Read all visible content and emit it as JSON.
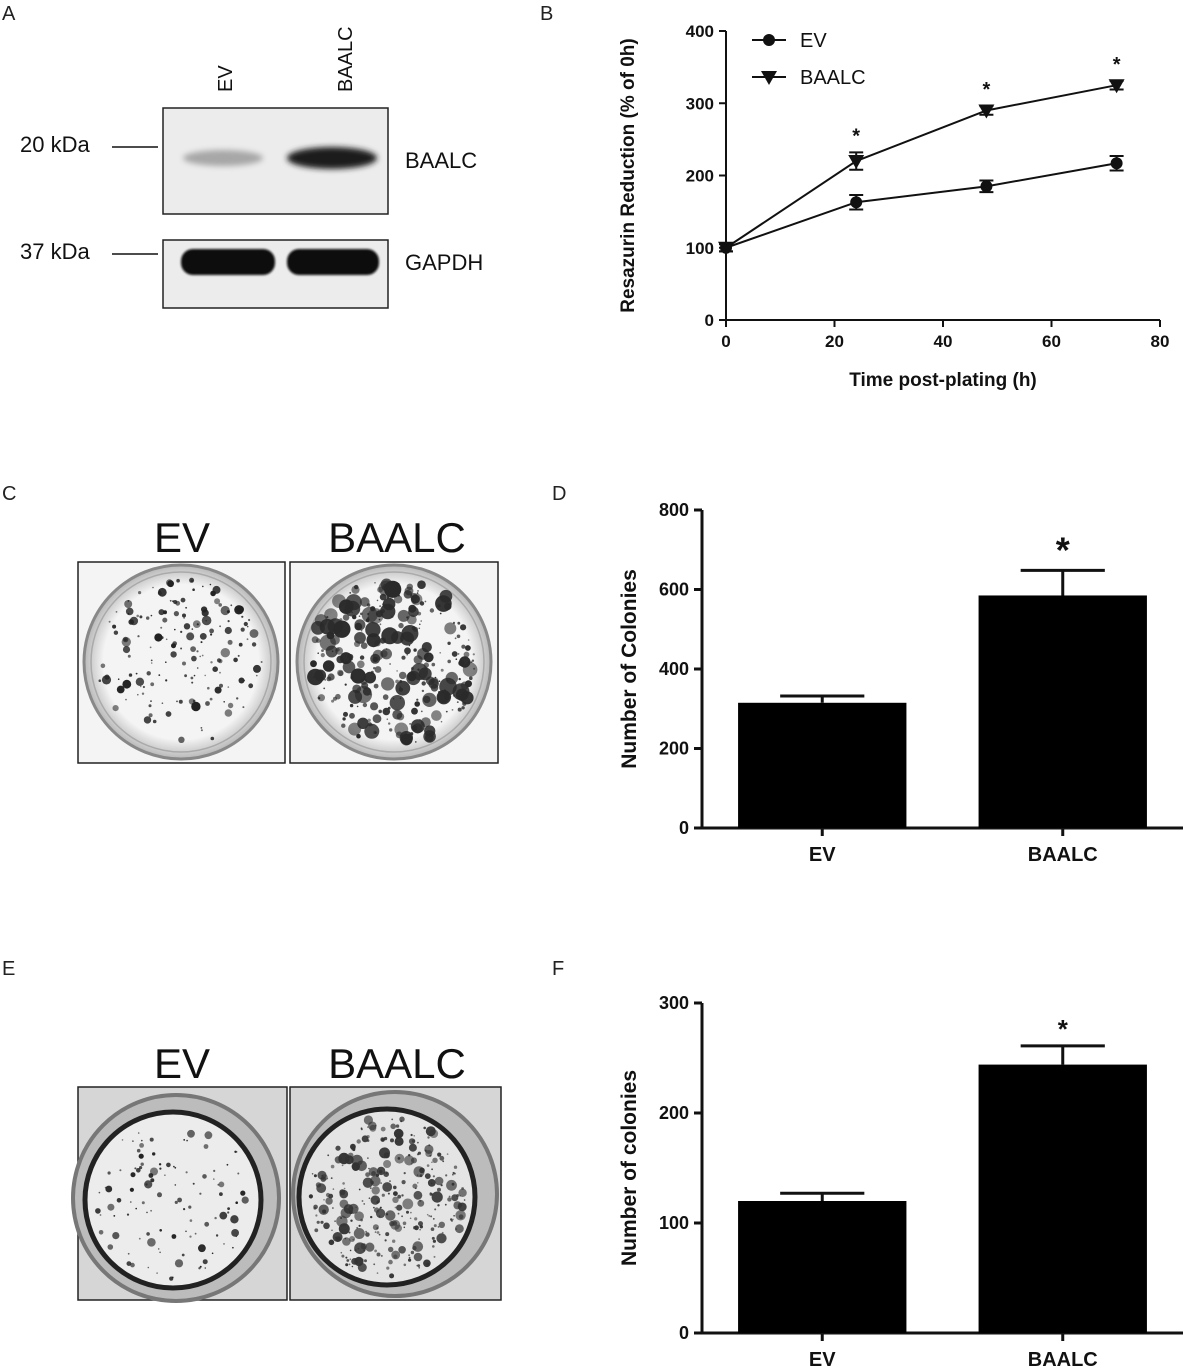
{
  "panels": {
    "a": {
      "letter": "A",
      "lanes": [
        "EV",
        "BAALC"
      ],
      "markers": [
        "20 kDa",
        "37 kDa"
      ],
      "proteins": [
        "BAALC",
        "GAPDH"
      ]
    },
    "c": {
      "letter": "C",
      "labels": [
        "EV",
        "BAALC"
      ]
    },
    "e": {
      "letter": "E",
      "labels": [
        "EV",
        "BAALC"
      ]
    }
  },
  "chart_data": [
    {
      "panel": "B",
      "type": "line",
      "xlabel": "Time post-plating (h)",
      "ylabel": "Resazurin Reduction (% of 0h)",
      "xlim": [
        0,
        80
      ],
      "ylim": [
        0,
        400
      ],
      "xticks": [
        "0",
        "20",
        "40",
        "60",
        "80"
      ],
      "yticks": [
        "0",
        "100",
        "200",
        "300",
        "400"
      ],
      "x": [
        0,
        24,
        48,
        72
      ],
      "series": [
        {
          "name": "EV",
          "marker": "circle",
          "values": [
            100,
            163,
            185,
            217
          ],
          "errors": [
            5,
            10,
            8,
            10
          ]
        },
        {
          "name": "BAALC",
          "marker": "triangle-down",
          "values": [
            100,
            220,
            290,
            325
          ],
          "errors": [
            5,
            12,
            6,
            6
          ]
        }
      ],
      "significance": [
        {
          "x": 24,
          "label": "*"
        },
        {
          "x": 48,
          "label": "*"
        },
        {
          "x": 72,
          "label": "*"
        }
      ],
      "legend_position": "top-left"
    },
    {
      "panel": "D",
      "type": "bar",
      "categories": [
        "EV",
        "BAALC"
      ],
      "values": [
        315,
        585
      ],
      "errors": [
        17,
        63
      ],
      "ylabel": "Number of Colonies",
      "ylim": [
        0,
        800
      ],
      "yticks": [
        "0",
        "200",
        "400",
        "600",
        "800"
      ],
      "significance": [
        {
          "category": "BAALC",
          "label": "*"
        }
      ]
    },
    {
      "panel": "F",
      "type": "bar",
      "categories": [
        "EV",
        "BAALC"
      ],
      "values": [
        120,
        244
      ],
      "errors": [
        7,
        17
      ],
      "ylabel": "Number of colonies",
      "ylim": [
        0,
        300
      ],
      "yticks": [
        "0",
        "100",
        "200",
        "300"
      ],
      "significance": [
        {
          "category": "BAALC",
          "label": "*"
        }
      ]
    }
  ]
}
